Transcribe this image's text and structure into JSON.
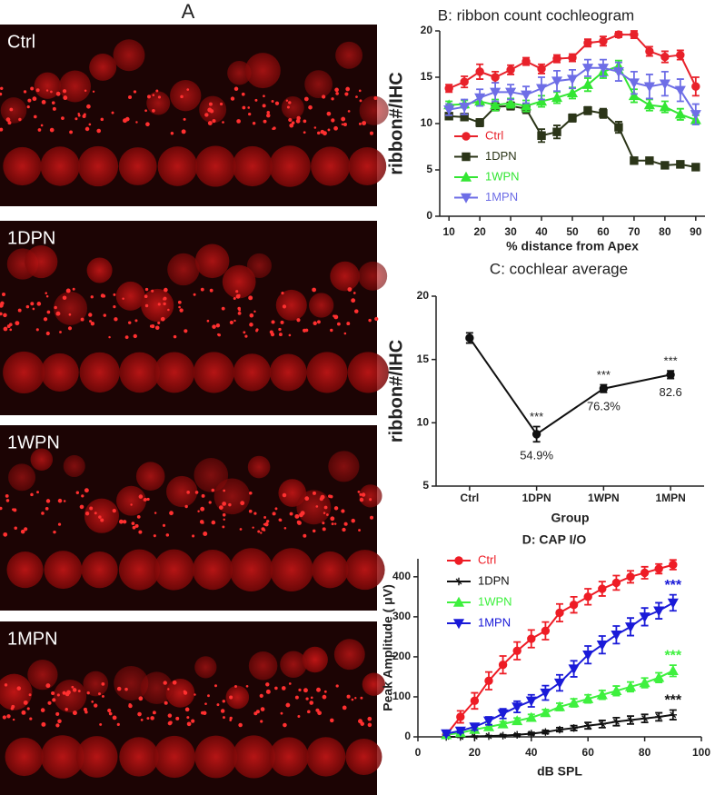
{
  "panel_a": {
    "title": "A",
    "images": [
      {
        "label": "Ctrl"
      },
      {
        "label": "1DPN"
      },
      {
        "label": "1WPN"
      },
      {
        "label": "1MPN"
      }
    ]
  },
  "chart_data": [
    {
      "type": "line",
      "title": "B: ribbon count cochleogram",
      "y_label": "ribbon#/IHC",
      "x_label": "% distance from Apex",
      "x": [
        10,
        15,
        20,
        25,
        30,
        35,
        40,
        45,
        50,
        55,
        60,
        65,
        70,
        75,
        80,
        85,
        90
      ],
      "xlim": [
        7,
        93
      ],
      "xticks": [
        10,
        20,
        30,
        40,
        50,
        60,
        70,
        80,
        90
      ],
      "ylim": [
        0,
        20
      ],
      "yticks": [
        0,
        5,
        10,
        15,
        20
      ],
      "legend": "left",
      "series": [
        {
          "name": "Ctrl",
          "color": "#e8212a",
          "marker": "circle",
          "values": [
            13.8,
            14.5,
            15.6,
            15.0,
            15.8,
            16.7,
            15.9,
            17.0,
            17.1,
            18.7,
            18.9,
            19.6,
            19.6,
            17.8,
            17.2,
            17.4,
            14.0
          ],
          "errors": [
            0.4,
            0.6,
            0.8,
            0.6,
            0.5,
            0.4,
            0.5,
            0.4,
            0.4,
            0.4,
            0.5,
            0.3,
            0.4,
            0.5,
            0.6,
            0.5,
            1.0
          ]
        },
        {
          "name": "1DPN",
          "color": "#2b3518",
          "marker": "square",
          "values": [
            10.8,
            10.7,
            10.1,
            11.8,
            11.9,
            11.6,
            8.7,
            9.1,
            10.6,
            11.4,
            11.1,
            9.6,
            6.0,
            6.0,
            5.5,
            5.6,
            5.3
          ],
          "errors": [
            0.3,
            0.3,
            0.4,
            0.4,
            0.4,
            0.5,
            0.7,
            0.7,
            0.4,
            0.4,
            0.5,
            0.6,
            0.3,
            0.3,
            0.3,
            0.3,
            0.2
          ]
        },
        {
          "name": "1WPN",
          "color": "#33e633",
          "marker": "triangle",
          "values": [
            12.0,
            12.1,
            12.4,
            12.0,
            12.2,
            11.9,
            12.4,
            12.8,
            13.3,
            14.2,
            15.6,
            16.2,
            13.0,
            12.0,
            11.8,
            11.0,
            10.4
          ],
          "errors": [
            0.4,
            0.4,
            0.5,
            0.6,
            0.5,
            0.6,
            0.6,
            0.6,
            0.6,
            0.7,
            0.7,
            0.6,
            0.7,
            0.6,
            0.6,
            0.6,
            0.5
          ]
        },
        {
          "name": "1MPN",
          "color": "#6e6ee6",
          "marker": "triangle-down",
          "values": [
            11.5,
            11.8,
            12.8,
            13.4,
            13.4,
            13.1,
            13.8,
            14.6,
            14.8,
            16.0,
            16.0,
            15.6,
            14.4,
            14.0,
            14.3,
            13.6,
            11.0
          ],
          "errors": [
            0.6,
            0.8,
            0.9,
            1.0,
            0.8,
            0.9,
            1.2,
            1.1,
            1.0,
            0.9,
            0.9,
            1.0,
            1.2,
            1.3,
            1.3,
            1.2,
            1.1
          ]
        }
      ]
    },
    {
      "type": "line",
      "title": "C: cochlear average",
      "y_label": "ribbon#/IHC",
      "x_label": "Group",
      "categories": [
        "Ctrl",
        "1DPN",
        "1WPN",
        "1MPN"
      ],
      "values": [
        16.7,
        9.1,
        12.7,
        13.8
      ],
      "errors": [
        0.4,
        0.6,
        0.3,
        0.3
      ],
      "color": "#111111",
      "marker": "circle",
      "significance": [
        null,
        "***",
        "***",
        "***"
      ],
      "percent_labels": [
        null,
        "54.9%",
        "76.3%",
        "82.6"
      ],
      "ylim": [
        5,
        20
      ],
      "yticks": [
        5,
        10,
        15,
        20
      ]
    },
    {
      "type": "line",
      "title": "D: CAP I/O",
      "y_label": "Peak Amplitude ( μV)",
      "x_label": "dB SPL",
      "x": [
        10,
        15,
        20,
        25,
        30,
        35,
        40,
        45,
        50,
        55,
        60,
        65,
        70,
        75,
        80,
        85,
        90
      ],
      "xlim": [
        0,
        100
      ],
      "xticks": [
        0,
        20,
        40,
        60,
        80,
        100
      ],
      "ylim": [
        0,
        445
      ],
      "yticks": [
        0,
        100,
        200,
        300,
        400
      ],
      "legend": "upper left",
      "series": [
        {
          "name": "Ctrl",
          "color": "#ee1c25",
          "marker": "circle",
          "values": [
            5,
            50,
            90,
            140,
            180,
            215,
            245,
            265,
            310,
            330,
            350,
            370,
            385,
            400,
            410,
            420,
            430
          ],
          "errors": [
            5,
            15,
            20,
            22,
            22,
            22,
            22,
            22,
            22,
            20,
            20,
            18,
            18,
            15,
            15,
            12,
            12
          ]
        },
        {
          "name": "1DPN",
          "color": "#111111",
          "marker": "star",
          "annotation": "***",
          "values": [
            0,
            0,
            1,
            2,
            3,
            5,
            8,
            12,
            18,
            22,
            28,
            32,
            38,
            42,
            46,
            50,
            55
          ],
          "errors": [
            1,
            1,
            1,
            1,
            2,
            2,
            3,
            4,
            5,
            6,
            8,
            9,
            10,
            10,
            10,
            10,
            12
          ]
        },
        {
          "name": "1WPN",
          "color": "#3ef03e",
          "marker": "triangle",
          "annotation": "***",
          "values": [
            5,
            10,
            18,
            25,
            32,
            40,
            48,
            60,
            75,
            85,
            95,
            105,
            115,
            125,
            135,
            148,
            165
          ],
          "errors": [
            3,
            4,
            5,
            6,
            6,
            7,
            8,
            8,
            9,
            10,
            10,
            11,
            12,
            12,
            12,
            12,
            14
          ]
        },
        {
          "name": "1MPN",
          "color": "#1a1ad8",
          "marker": "triangle-down",
          "annotation": "***",
          "values": [
            8,
            15,
            25,
            40,
            58,
            75,
            90,
            110,
            135,
            170,
            205,
            230,
            255,
            275,
            300,
            315,
            335
          ],
          "errors": [
            4,
            5,
            8,
            10,
            12,
            14,
            15,
            18,
            20,
            20,
            22,
            22,
            22,
            22,
            22,
            20,
            20
          ]
        }
      ]
    }
  ]
}
